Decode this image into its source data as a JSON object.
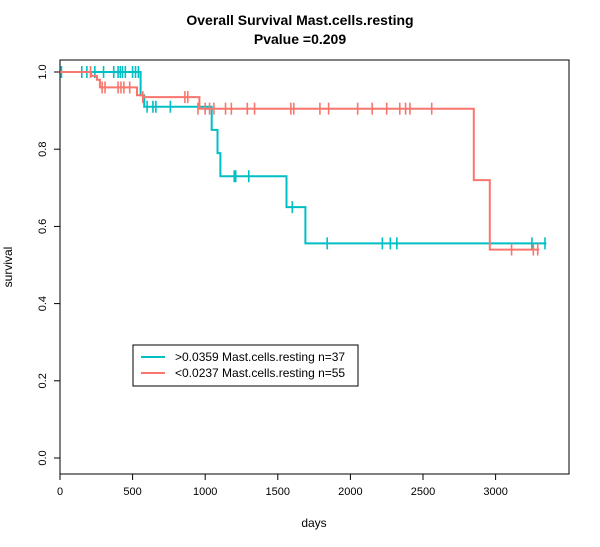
{
  "chart_data": {
    "type": "line",
    "subtype": "kaplan-meier",
    "title": "Overall Survival Mast.cells.resting",
    "subtitle": "Pvalue =0.209",
    "xlabel": "days",
    "ylabel": "survival",
    "xlim": [
      0,
      3500
    ],
    "ylim": [
      0,
      1
    ],
    "xticks": [
      0,
      500,
      1000,
      1500,
      2000,
      2500,
      3000
    ],
    "yticks": [
      0.0,
      0.2,
      0.4,
      0.6,
      0.8,
      1.0
    ],
    "xtick_labels": [
      "0",
      "500",
      "1000",
      "1500",
      "2000",
      "2500",
      "3000"
    ],
    "ytick_labels": [
      "0.0",
      "0.2",
      "0.4",
      "0.6",
      "0.8",
      "1.0"
    ],
    "legend_position": "bottom-left",
    "series": [
      {
        "name": ">0.0359 Mast.cells.resting n=37",
        "color": "#00BFC4",
        "steps": [
          [
            0,
            1.0
          ],
          [
            555,
            0.94
          ],
          [
            580,
            0.91
          ],
          [
            1045,
            0.85
          ],
          [
            1085,
            0.79
          ],
          [
            1105,
            0.73
          ],
          [
            1560,
            0.65
          ],
          [
            1690,
            0.556
          ],
          [
            3350,
            0.556
          ]
        ],
        "censors": [
          [
            10,
            1.0
          ],
          [
            150,
            1.0
          ],
          [
            185,
            1.0
          ],
          [
            240,
            1.0
          ],
          [
            300,
            1.0
          ],
          [
            370,
            1.0
          ],
          [
            400,
            1.0
          ],
          [
            415,
            1.0
          ],
          [
            430,
            1.0
          ],
          [
            450,
            1.0
          ],
          [
            500,
            1.0
          ],
          [
            520,
            1.0
          ],
          [
            540,
            1.0
          ],
          [
            600,
            0.91
          ],
          [
            640,
            0.91
          ],
          [
            660,
            0.91
          ],
          [
            760,
            0.91
          ],
          [
            1200,
            0.73
          ],
          [
            1210,
            0.73
          ],
          [
            1300,
            0.73
          ],
          [
            1600,
            0.65
          ],
          [
            1840,
            0.556
          ],
          [
            2220,
            0.556
          ],
          [
            2275,
            0.556
          ],
          [
            2320,
            0.556
          ],
          [
            3250,
            0.556
          ],
          [
            3340,
            0.556
          ]
        ]
      },
      {
        "name": "<0.0237 Mast.cells.resting n=55",
        "color": "#F8766D",
        "steps": [
          [
            0,
            1.0
          ],
          [
            215,
            0.99
          ],
          [
            255,
            0.98
          ],
          [
            275,
            0.96
          ],
          [
            530,
            0.94
          ],
          [
            575,
            0.935
          ],
          [
            960,
            0.905
          ],
          [
            2850,
            0.72
          ],
          [
            2960,
            0.54
          ],
          [
            3300,
            0.54
          ]
        ],
        "censors": [
          [
            210,
            1.0
          ],
          [
            290,
            0.96
          ],
          [
            310,
            0.96
          ],
          [
            400,
            0.96
          ],
          [
            420,
            0.96
          ],
          [
            440,
            0.96
          ],
          [
            480,
            0.96
          ],
          [
            570,
            0.935
          ],
          [
            860,
            0.935
          ],
          [
            880,
            0.935
          ],
          [
            950,
            0.905
          ],
          [
            1000,
            0.905
          ],
          [
            1030,
            0.905
          ],
          [
            1060,
            0.905
          ],
          [
            1140,
            0.905
          ],
          [
            1180,
            0.905
          ],
          [
            1290,
            0.905
          ],
          [
            1340,
            0.905
          ],
          [
            1590,
            0.905
          ],
          [
            1610,
            0.905
          ],
          [
            1790,
            0.905
          ],
          [
            1850,
            0.905
          ],
          [
            2050,
            0.905
          ],
          [
            2150,
            0.905
          ],
          [
            2250,
            0.905
          ],
          [
            2340,
            0.905
          ],
          [
            2380,
            0.905
          ],
          [
            2410,
            0.905
          ],
          [
            2560,
            0.905
          ],
          [
            3110,
            0.54
          ],
          [
            3260,
            0.54
          ],
          [
            3290,
            0.54
          ]
        ]
      }
    ]
  }
}
